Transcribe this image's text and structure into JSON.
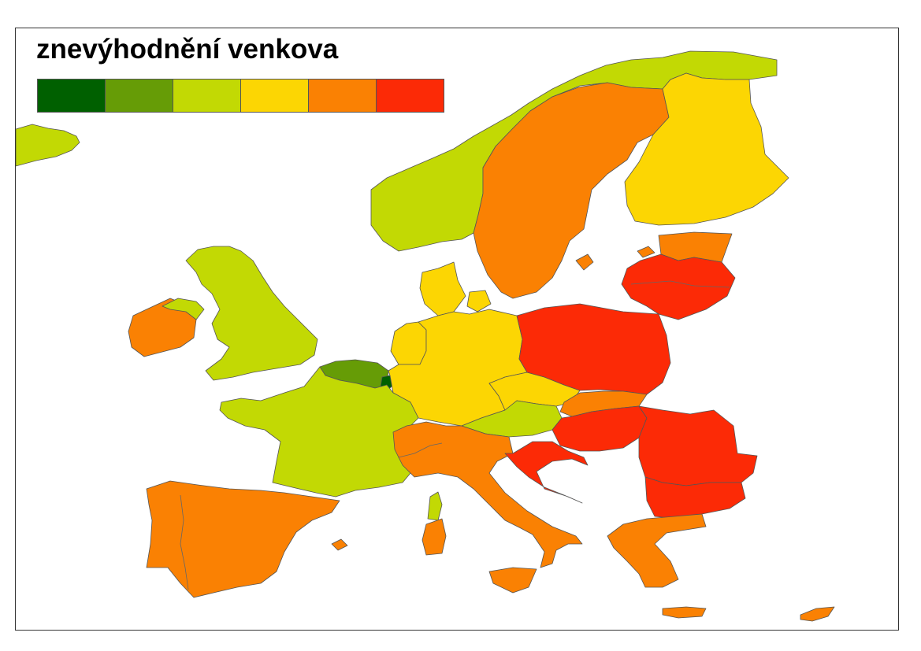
{
  "map": {
    "title": "znevýhodnění venkova",
    "legend": {
      "colors": [
        "#006000",
        "#669c06",
        "#c2d904",
        "#fcd603",
        "#fa8103",
        "#fc2a06"
      ]
    },
    "palette": {
      "very_low": "#006000",
      "low": "#669c06",
      "medium_low": "#c2d904",
      "medium": "#fcd603",
      "medium_high": "#fa8103",
      "high": "#fc2a06"
    },
    "regions": [
      {
        "id": "iceland",
        "class": "medium_low"
      },
      {
        "id": "norway",
        "class": "medium_low"
      },
      {
        "id": "sweden",
        "class": "medium_high"
      },
      {
        "id": "finland",
        "class": "medium"
      },
      {
        "id": "estonia",
        "class": "medium_high"
      },
      {
        "id": "latvia-lithuania",
        "class": "high"
      },
      {
        "id": "ireland",
        "class": "medium_high"
      },
      {
        "id": "united-kingdom",
        "class": "medium_low"
      },
      {
        "id": "denmark",
        "class": "medium"
      },
      {
        "id": "netherlands",
        "class": "medium"
      },
      {
        "id": "belgium",
        "class": "low"
      },
      {
        "id": "luxembourg",
        "class": "very_low"
      },
      {
        "id": "germany",
        "class": "medium"
      },
      {
        "id": "czechia",
        "class": "medium"
      },
      {
        "id": "poland",
        "class": "high"
      },
      {
        "id": "slovakia",
        "class": "medium_high"
      },
      {
        "id": "austria",
        "class": "medium_low"
      },
      {
        "id": "france",
        "class": "medium_low"
      },
      {
        "id": "italy",
        "class": "medium_high"
      },
      {
        "id": "spain-portugal",
        "class": "medium_high"
      },
      {
        "id": "hungary",
        "class": "high"
      },
      {
        "id": "romania",
        "class": "high"
      },
      {
        "id": "croatia",
        "class": "high"
      },
      {
        "id": "bulgaria",
        "class": "high"
      },
      {
        "id": "greece",
        "class": "medium_high"
      },
      {
        "id": "cyprus",
        "class": "medium_high"
      }
    ]
  }
}
